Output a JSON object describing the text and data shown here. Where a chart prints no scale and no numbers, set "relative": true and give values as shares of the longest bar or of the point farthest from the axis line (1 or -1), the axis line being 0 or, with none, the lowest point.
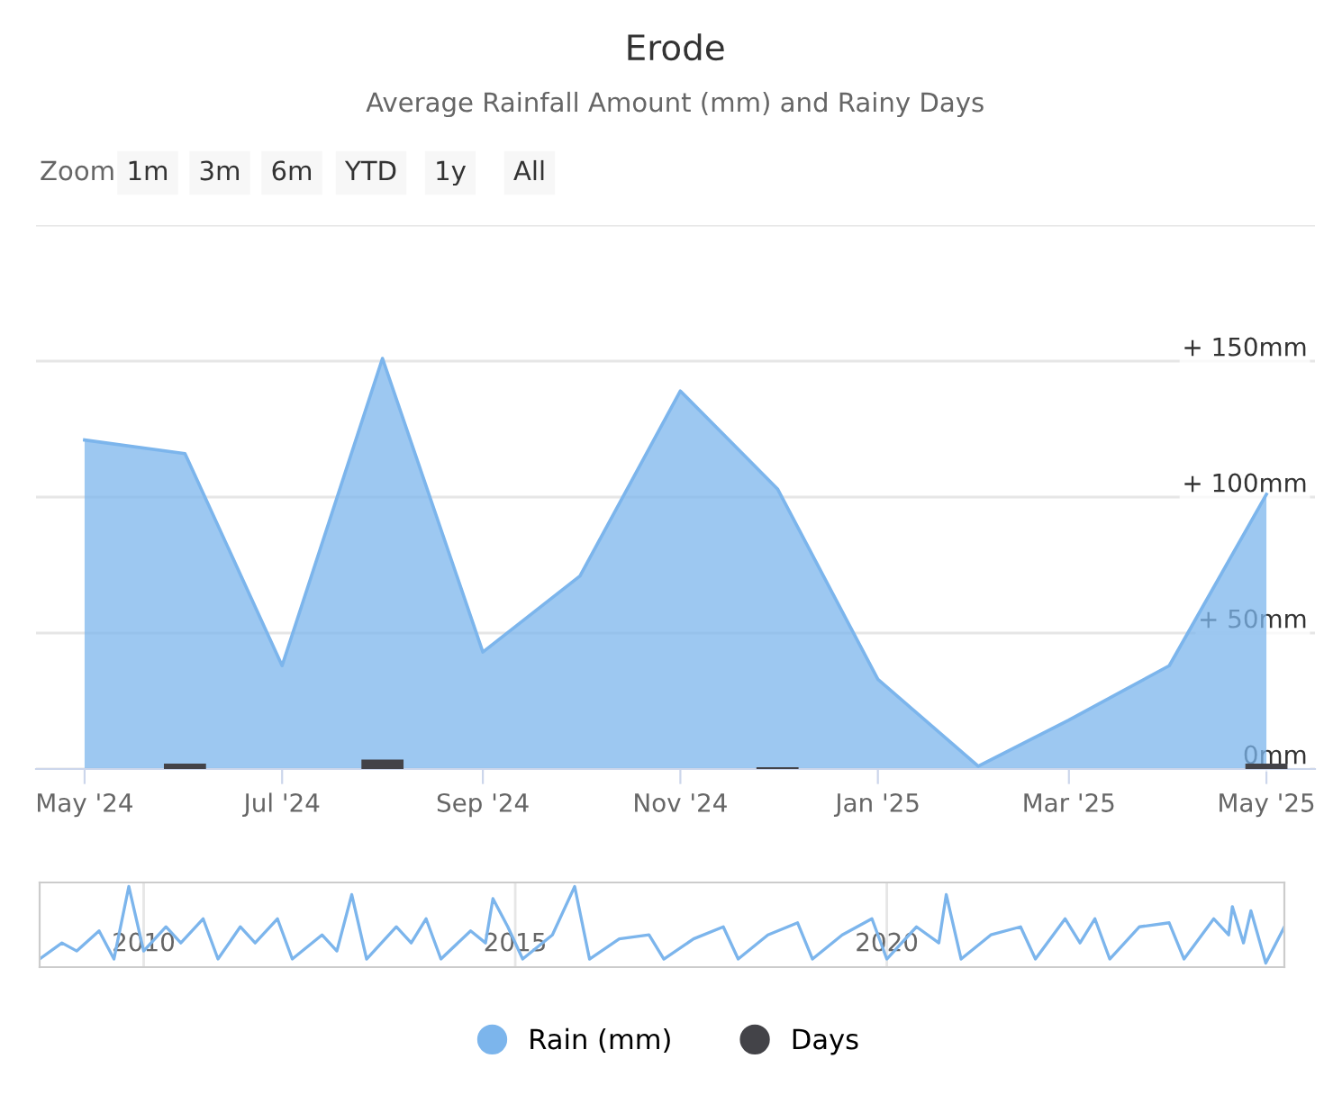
{
  "chart_data": [
    {
      "type": "area",
      "title": "Erode",
      "subtitle": "Average Rainfall Amount (mm) and Rainy Days",
      "annotations": [
        "Zoom",
        "1m",
        "3m",
        "6m",
        "YTD",
        "1y",
        "All"
      ],
      "x": [
        "2024-05",
        "2024-06",
        "2024-07",
        "2024-08",
        "2024-09",
        "2024-10",
        "2024-11",
        "2024-12",
        "2025-01",
        "2025-02",
        "2025-03",
        "2025-04",
        "2025-05"
      ],
      "series": [
        {
          "name": "Rain (mm)",
          "type": "area",
          "color": "#7cb5ec",
          "values": [
            121,
            116,
            38,
            151,
            43,
            71,
            139,
            103,
            33,
            1,
            18,
            38,
            101
          ]
        },
        {
          "name": "Days",
          "type": "bar",
          "color": "#434348",
          "values": [
            0,
            2,
            0,
            3.5,
            0,
            0,
            0,
            0.7,
            0,
            0,
            0,
            0,
            2
          ]
        }
      ],
      "xlim": [
        "2024-04-16",
        "2025-05-16"
      ],
      "xticks": [
        {
          "value": "2024-05",
          "label": "May '24"
        },
        {
          "value": "2024-07",
          "label": "Jul '24"
        },
        {
          "value": "2024-09",
          "label": "Sep '24"
        },
        {
          "value": "2024-11",
          "label": "Nov '24"
        },
        {
          "value": "2025-01",
          "label": "Jan '25"
        },
        {
          "value": "2025-03",
          "label": "Mar '25"
        },
        {
          "value": "2025-05",
          "label": "May '25"
        }
      ],
      "ylim": [
        0,
        200
      ],
      "yticks": [
        {
          "value": 0,
          "label": "0mm"
        },
        {
          "value": 50,
          "label": "+ 50mm"
        },
        {
          "value": 100,
          "label": "+ 100mm"
        },
        {
          "value": 150,
          "label": "+ 150mm"
        },
        {
          "value": 200,
          "label": null
        }
      ],
      "grid": "y",
      "legend": "bottom"
    },
    {
      "type": "line",
      "relative": true,
      "grid": "x",
      "x": [
        2008.6,
        2008.9,
        2009.1,
        2009.4,
        2009.6,
        2009.8,
        2010.0,
        2010.3,
        2010.5,
        2010.8,
        2011.0,
        2011.3,
        2011.5,
        2011.8,
        2012.0,
        2012.4,
        2012.6,
        2012.8,
        2013.0,
        2013.4,
        2013.6,
        2013.8,
        2014.0,
        2014.4,
        2014.6,
        2014.7,
        2014.9,
        2015.1,
        2015.5,
        2015.8,
        2016.0,
        2016.4,
        2016.8,
        2017.0,
        2017.4,
        2017.8,
        2018.0,
        2018.4,
        2018.8,
        2019.0,
        2019.4,
        2019.8,
        2020.0,
        2020.4,
        2020.7,
        2020.8,
        2021.0,
        2021.4,
        2021.8,
        2022.0,
        2022.4,
        2022.6,
        2022.8,
        2023.0,
        2023.4,
        2023.8,
        2024.0,
        2024.4,
        2024.6,
        2024.65,
        2024.8,
        2024.9,
        2025.1,
        2025.35
      ],
      "series": [
        {
          "color": "#7cb5ec",
          "values": [
            0.1,
            0.3,
            0.2,
            0.45,
            0.1,
            1.0,
            0.2,
            0.5,
            0.3,
            0.6,
            0.1,
            0.5,
            0.3,
            0.6,
            0.1,
            0.4,
            0.2,
            0.9,
            0.1,
            0.5,
            0.3,
            0.6,
            0.1,
            0.45,
            0.3,
            0.85,
            0.5,
            0.1,
            0.4,
            1.0,
            0.1,
            0.35,
            0.4,
            0.1,
            0.35,
            0.5,
            0.1,
            0.4,
            0.55,
            0.1,
            0.4,
            0.6,
            0.1,
            0.5,
            0.3,
            0.9,
            0.1,
            0.4,
            0.5,
            0.1,
            0.6,
            0.3,
            0.6,
            0.1,
            0.5,
            0.55,
            0.1,
            0.6,
            0.4,
            0.75,
            0.3,
            0.7,
            0.05,
            0.5
          ]
        }
      ],
      "xlim": [
        2008.6,
        2025.35
      ],
      "xticks": [
        2010,
        2015,
        2020
      ]
    }
  ]
}
